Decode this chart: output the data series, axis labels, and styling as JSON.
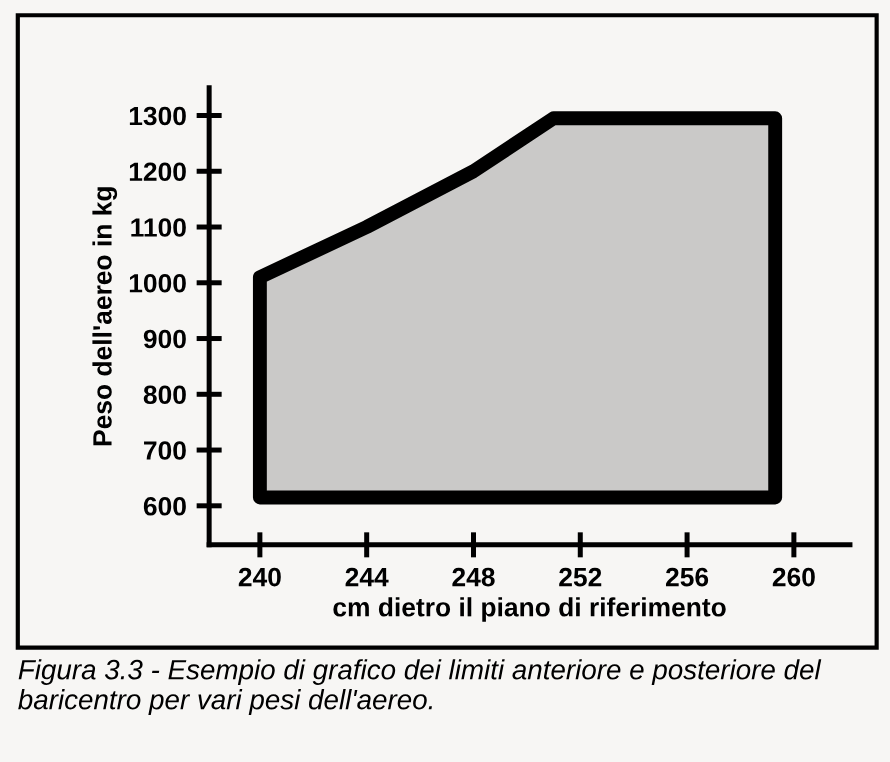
{
  "chart_data": {
    "type": "area",
    "xlabel": "cm dietro il piano di riferimento",
    "ylabel": "Peso dell'aereo in kg",
    "x": [
      240,
      240,
      244,
      248,
      251,
      259.3,
      259.3,
      240
    ],
    "series": [
      {
        "color": "#000000",
        "values": [
          615,
          1010,
          1100,
          1200,
          1295,
          1295,
          615,
          615
        ]
      }
    ],
    "xlim": [
      238.1,
      262.1
    ],
    "ylim": [
      530,
      1350
    ],
    "xticks": [
      240,
      244,
      248,
      252,
      256,
      260
    ],
    "yticks": [
      600,
      700,
      800,
      900,
      1000,
      1100,
      1200,
      1300
    ],
    "grid": false,
    "annotations": [
      "Figura 3.3 - Esempio di grafico dei limiti anteriore e posteriore del baricentro per vari pesi dell'aereo."
    ]
  }
}
